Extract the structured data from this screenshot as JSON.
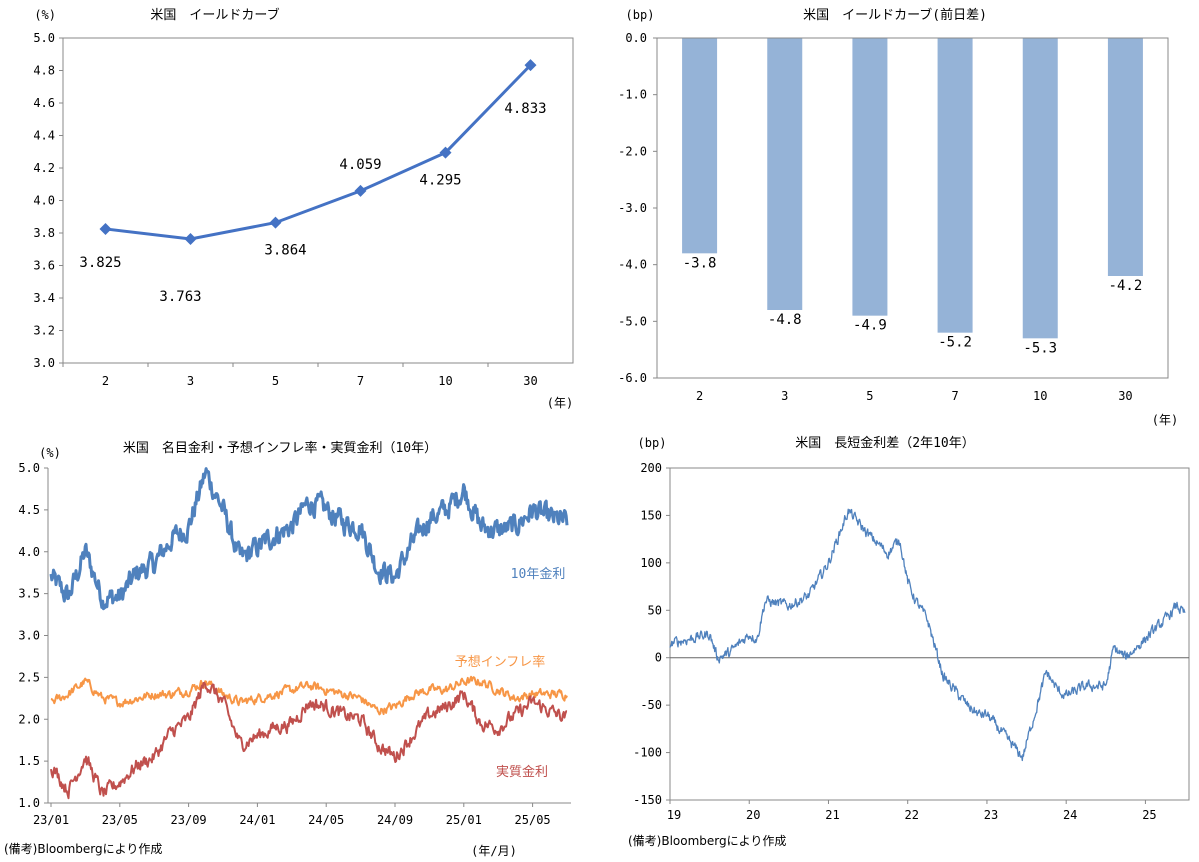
{
  "charts": {
    "yield_curve": {
      "title": "米国　イールドカーブ",
      "unit": "(%)",
      "x_unit": "(年)",
      "color": "#4472C4"
    },
    "yield_change": {
      "title": "米国　イールドカーブ(前日差)",
      "unit": "(bp)",
      "x_unit": "(年)",
      "color": "#95B3D7"
    },
    "rates": {
      "title": "米国　名目金利・予想インフレ率・実質金利（10年）",
      "unit": "(%)",
      "x_unit": "(年/月)",
      "series_colors": [
        "#4F81BD",
        "#F79646",
        "#C0504D"
      ]
    },
    "spread": {
      "title": "米国　長短金利差（2年10年）",
      "unit": "(bp)",
      "color": "#4F81BD"
    }
  },
  "notes": {
    "left": "(備考)Bloombergにより作成",
    "right": "(備考)Bloombergにより作成"
  },
  "chart_data": [
    {
      "type": "line",
      "title": "米国　イールドカーブ",
      "x": [
        "2",
        "3",
        "5",
        "7",
        "10",
        "30"
      ],
      "series": [
        {
          "values": [
            3.825,
            3.763,
            3.864,
            4.059,
            4.295,
            4.833
          ]
        }
      ],
      "data_labels": [
        "3.825",
        "3.763",
        "3.864",
        "4.059",
        "4.295",
        "4.833"
      ],
      "ylim": [
        3.0,
        5.0
      ],
      "yticks": [
        "3.0",
        "3.2",
        "3.4",
        "3.6",
        "3.8",
        "4.0",
        "4.2",
        "4.4",
        "4.6",
        "4.8",
        "5.0"
      ],
      "ylabel": "(%)",
      "xlabel": "(年)",
      "grid": false
    },
    {
      "type": "bar",
      "title": "米国　イールドカーブ(前日差)",
      "categories": [
        "2",
        "3",
        "5",
        "7",
        "10",
        "30"
      ],
      "values": [
        -3.8,
        -4.8,
        -4.9,
        -5.2,
        -5.3,
        -4.2
      ],
      "data_labels": [
        "-3.8",
        "-4.8",
        "-4.9",
        "-5.2",
        "-5.3",
        "-4.2"
      ],
      "ylim": [
        -6.0,
        0.0
      ],
      "yticks": [
        "0.0",
        "-1.0",
        "-2.0",
        "-3.0",
        "-4.0",
        "-5.0",
        "-6.0"
      ],
      "ylabel": "(bp)",
      "xlabel": "(年)",
      "grid": false
    },
    {
      "type": "line",
      "title": "米国　名目金利・予想インフレ率・実質金利（10年）",
      "x_ticks": [
        "23/01",
        "23/05",
        "23/09",
        "24/01",
        "24/05",
        "24/09",
        "25/01",
        "25/05"
      ],
      "ylim": [
        1.0,
        5.0
      ],
      "yticks": [
        "1.0",
        "1.5",
        "2.0",
        "2.5",
        "3.0",
        "3.5",
        "4.0",
        "4.5",
        "5.0"
      ],
      "ylabel": "(%)",
      "xlabel": "(年/月)",
      "series": [
        {
          "name": "10年金利",
          "x": [
            "2023-01",
            "2023-02",
            "2023-03",
            "2023-04",
            "2023-05",
            "2023-06",
            "2023-07",
            "2023-08",
            "2023-09",
            "2023-10",
            "2023-11",
            "2023-12",
            "2024-01",
            "2024-02",
            "2024-03",
            "2024-04",
            "2024-05",
            "2024-06",
            "2024-07",
            "2024-08",
            "2024-09",
            "2024-10",
            "2024-11",
            "2024-12",
            "2025-01",
            "2025-02",
            "2025-03",
            "2025-04",
            "2025-05",
            "2025-06",
            "2025-07"
          ],
          "values": [
            3.7,
            3.45,
            4.0,
            3.45,
            3.45,
            3.75,
            3.85,
            4.15,
            4.3,
            4.95,
            4.5,
            3.9,
            4.05,
            4.2,
            4.3,
            4.6,
            4.5,
            4.35,
            4.3,
            3.8,
            3.7,
            4.1,
            4.4,
            4.5,
            4.75,
            4.3,
            4.25,
            4.3,
            4.5,
            4.4,
            4.35
          ]
        },
        {
          "name": "予想インフレ率",
          "x": [
            "2023-01",
            "2023-02",
            "2023-03",
            "2023-04",
            "2023-05",
            "2023-06",
            "2023-07",
            "2023-08",
            "2023-09",
            "2023-10",
            "2023-11",
            "2023-12",
            "2024-01",
            "2024-02",
            "2024-03",
            "2024-04",
            "2024-05",
            "2024-06",
            "2024-07",
            "2024-08",
            "2024-09",
            "2024-10",
            "2024-11",
            "2024-12",
            "2025-01",
            "2025-02",
            "2025-03",
            "2025-04",
            "2025-05",
            "2025-06",
            "2025-07"
          ],
          "values": [
            2.2,
            2.3,
            2.45,
            2.25,
            2.2,
            2.25,
            2.3,
            2.3,
            2.35,
            2.45,
            2.3,
            2.2,
            2.25,
            2.3,
            2.35,
            2.4,
            2.35,
            2.3,
            2.25,
            2.1,
            2.15,
            2.3,
            2.35,
            2.35,
            2.45,
            2.45,
            2.35,
            2.25,
            2.3,
            2.3,
            2.3
          ]
        },
        {
          "name": "実質金利",
          "x": [
            "2023-01",
            "2023-02",
            "2023-03",
            "2023-04",
            "2023-05",
            "2023-06",
            "2023-07",
            "2023-08",
            "2023-09",
            "2023-10",
            "2023-11",
            "2023-12",
            "2024-01",
            "2024-02",
            "2024-03",
            "2024-04",
            "2024-05",
            "2024-06",
            "2024-07",
            "2024-08",
            "2024-09",
            "2024-10",
            "2024-11",
            "2024-12",
            "2025-01",
            "2025-02",
            "2025-03",
            "2025-04",
            "2025-05",
            "2025-06",
            "2025-07"
          ],
          "values": [
            1.45,
            1.15,
            1.55,
            1.1,
            1.25,
            1.45,
            1.55,
            1.85,
            2.0,
            2.45,
            2.2,
            1.7,
            1.8,
            1.9,
            1.95,
            2.2,
            2.15,
            2.05,
            2.0,
            1.7,
            1.55,
            1.8,
            2.05,
            2.15,
            2.3,
            1.95,
            1.9,
            2.05,
            2.2,
            2.1,
            2.0
          ]
        }
      ],
      "grid": false
    },
    {
      "type": "line",
      "title": "米国　長短金利差（2年10年）",
      "x_ticks": [
        "19",
        "20",
        "21",
        "22",
        "23",
        "24",
        "25"
      ],
      "ylim": [
        -150,
        200
      ],
      "yticks": [
        "200",
        "150",
        "100",
        "50",
        "0",
        "-50",
        "-100",
        "-150"
      ],
      "ylabel": "(bp)",
      "series": [
        {
          "x": [
            2019.0,
            2019.25,
            2019.5,
            2019.6,
            2019.75,
            2020.0,
            2020.1,
            2020.2,
            2020.5,
            2020.75,
            2021.0,
            2021.25,
            2021.3,
            2021.5,
            2021.75,
            2021.9,
            2022.0,
            2022.1,
            2022.25,
            2022.45,
            2022.6,
            2022.75,
            2022.9,
            2023.0,
            2023.2,
            2023.45,
            2023.55,
            2023.75,
            2023.9,
            2024.0,
            2024.25,
            2024.5,
            2024.6,
            2024.75,
            2025.0,
            2025.25,
            2025.4,
            2025.5
          ],
          "values": [
            15,
            20,
            25,
            0,
            5,
            25,
            20,
            60,
            55,
            65,
            100,
            155,
            150,
            130,
            110,
            125,
            80,
            60,
            40,
            -20,
            -35,
            -50,
            -60,
            -60,
            -80,
            -105,
            -75,
            -15,
            -35,
            -40,
            -30,
            -30,
            10,
            0,
            20,
            40,
            55,
            45
          ]
        }
      ],
      "reference_line": 0,
      "grid": false
    }
  ]
}
